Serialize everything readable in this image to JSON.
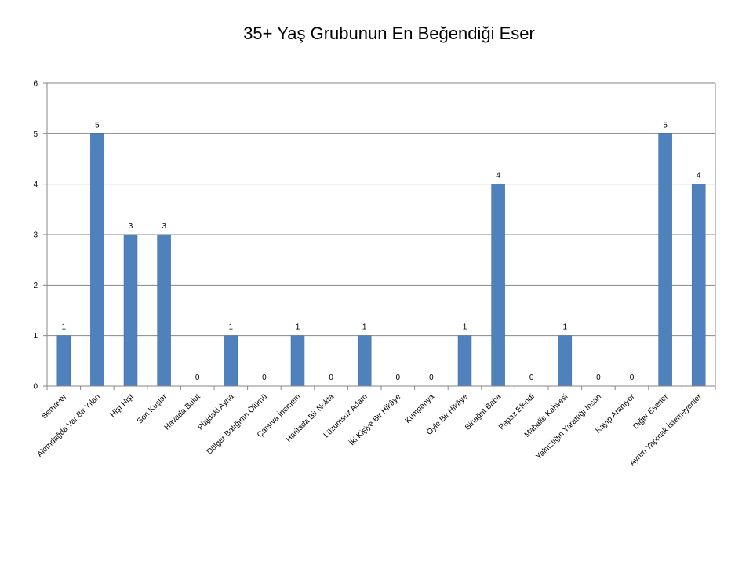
{
  "chart_data": {
    "type": "bar",
    "title": "35+ Yaş Grubunun En Beğendiği Eser",
    "xlabel": "",
    "ylabel": "",
    "ylim": [
      0,
      6
    ],
    "yticks": [
      0,
      1,
      2,
      3,
      4,
      5,
      6
    ],
    "grid": true,
    "legend": "none",
    "bar_color": "#4F81BD",
    "categories": [
      "Semaver",
      "Alemdağda Var Bir Yılan",
      "Hişt Hişt",
      "Son Kuşlar",
      "Havada Bulut",
      "Plajdaki Ayna",
      "Dülger Balığının Ölümü",
      "Çarşıya İnemem",
      "Haritada Bir Nokta",
      "Lüzumsuz Adam",
      "İki Kişiye Bir Hikâye",
      "Kumpanya",
      "Öyle Bir Hikâye",
      "Sinağrit Baba",
      "Papaz Efendi",
      "Mahalle Kahvesi",
      "Yalnızlığın Yarattığı İnsan",
      "Kayıp Aranıyor",
      "Diğer Eserler",
      "Ayrım Yapmak İstemeyenler"
    ],
    "values": [
      1,
      5,
      3,
      3,
      0,
      1,
      0,
      1,
      0,
      1,
      0,
      0,
      1,
      4,
      0,
      1,
      0,
      0,
      5,
      4
    ]
  }
}
